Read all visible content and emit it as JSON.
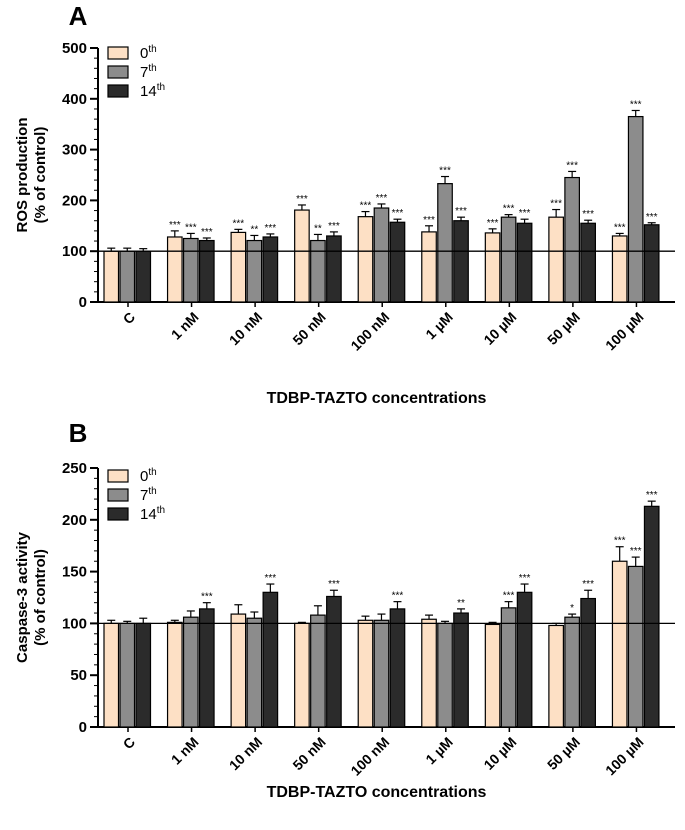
{
  "chart_data": [
    {
      "panel": "A",
      "type": "bar",
      "ylabel_line1": "ROS production",
      "ylabel_line2": "(% of control)",
      "xlabel": "TDBP-TAZTO concentrations",
      "categories": [
        "C",
        "1 nM",
        "10 nM",
        "50 nM",
        "100 nM",
        "1 µM",
        "10 µM",
        "50 µM",
        "100 µM"
      ],
      "ylim": [
        0,
        500
      ],
      "yticks": [
        "0",
        "100",
        "200",
        "300",
        "400",
        "500"
      ],
      "reference_line": 100,
      "legend": [
        {
          "base": "0",
          "sup": "th"
        },
        {
          "base": "7",
          "sup": "th"
        },
        {
          "base": "14",
          "sup": "th"
        }
      ],
      "series": [
        {
          "name": "0th",
          "color": "#fde0c5",
          "values": [
            100,
            128,
            137,
            181,
            168,
            138,
            136,
            167,
            130
          ],
          "errors": [
            6,
            12,
            6,
            10,
            10,
            12,
            8,
            15,
            5
          ],
          "significance": [
            "",
            "***",
            "***",
            "***",
            "***",
            "***",
            "***",
            "***",
            "***"
          ]
        },
        {
          "name": "7th",
          "color": "#8c8c8c",
          "values": [
            100,
            125,
            121,
            121,
            185,
            233,
            167,
            245,
            365
          ],
          "errors": [
            6,
            10,
            10,
            12,
            8,
            14,
            5,
            12,
            12
          ],
          "significance": [
            "",
            "***",
            "**",
            "**",
            "***",
            "***",
            "***",
            "***",
            "***"
          ]
        },
        {
          "name": "14th",
          "color": "#2b2b2b",
          "values": [
            100,
            121,
            128,
            130,
            157,
            160,
            155,
            155,
            152
          ],
          "errors": [
            5,
            5,
            6,
            8,
            6,
            7,
            8,
            6,
            4
          ],
          "significance": [
            "",
            "***",
            "***",
            "***",
            "***",
            "***",
            "***",
            "***",
            "***"
          ]
        }
      ]
    },
    {
      "panel": "B",
      "type": "bar",
      "ylabel_line1": "Caspase-3 activity",
      "ylabel_line2": "(% of control)",
      "xlabel": "TDBP-TAZTO concentrations",
      "categories": [
        "C",
        "1 nM",
        "10 nM",
        "50 nM",
        "100 nM",
        "1 µM",
        "10 µM",
        "50 µM",
        "100 µM"
      ],
      "ylim": [
        0,
        250
      ],
      "yticks": [
        "0",
        "50",
        "100",
        "150",
        "200",
        "250"
      ],
      "reference_line": 100,
      "legend": [
        {
          "base": "0",
          "sup": "th"
        },
        {
          "base": "7",
          "sup": "th"
        },
        {
          "base": "14",
          "sup": "th"
        }
      ],
      "series": [
        {
          "name": "0th",
          "color": "#fde0c5",
          "values": [
            100,
            101,
            109,
            100,
            103,
            104,
            99,
            98,
            160
          ],
          "errors": [
            3,
            2,
            9,
            1,
            4,
            4,
            2,
            2,
            14
          ],
          "significance": [
            "",
            "",
            "",
            "",
            "",
            "",
            "",
            "",
            "***"
          ]
        },
        {
          "name": "7th",
          "color": "#8c8c8c",
          "values": [
            100,
            106,
            105,
            108,
            103,
            100,
            115,
            106,
            155
          ],
          "errors": [
            2,
            6,
            6,
            9,
            6,
            2,
            6,
            3,
            9
          ],
          "significance": [
            "",
            "",
            "",
            "",
            "",
            "",
            "***",
            "*",
            "***"
          ]
        },
        {
          "name": "14th",
          "color": "#2b2b2b",
          "values": [
            100,
            114,
            130,
            126,
            114,
            110,
            130,
            124,
            213
          ],
          "errors": [
            5,
            6,
            8,
            6,
            7,
            4,
            8,
            8,
            5
          ],
          "significance": [
            "",
            "***",
            "***",
            "***",
            "***",
            "**",
            "***",
            "***",
            "***"
          ]
        }
      ]
    }
  ]
}
